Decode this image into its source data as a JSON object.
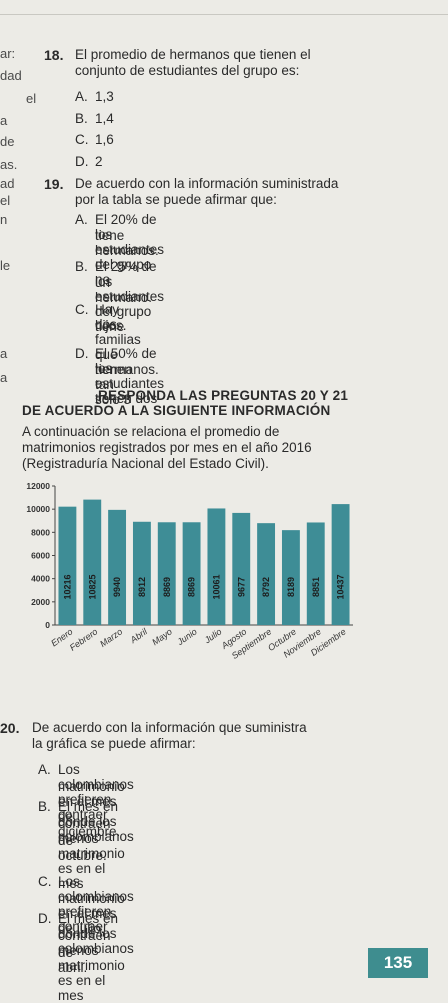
{
  "left_margin_fragments": [
    "ar:",
    "dad",
    "el",
    "a",
    "de",
    "as.",
    "ad",
    "el",
    "n",
    "le",
    "a",
    "a"
  ],
  "q18": {
    "number": "18.",
    "text_lines": [
      "El promedio de hermanos que tienen el",
      "conjunto de estudiantes del grupo es:"
    ],
    "options": [
      {
        "letter": "A.",
        "text": "1,3"
      },
      {
        "letter": "B.",
        "text": "1,4"
      },
      {
        "letter": "C.",
        "text": "1,6"
      },
      {
        "letter": "D.",
        "text": "2"
      }
    ]
  },
  "q19": {
    "number": "19.",
    "text_lines": [
      "De acuerdo con la información suministrada",
      "por la tabla se puede afirmar que:"
    ],
    "options": [
      {
        "letter": "A.",
        "lines": [
          "El 20% de los estudiantes del grupo no",
          "tiene hermanos."
        ]
      },
      {
        "letter": "B.",
        "lines": [
          "El 25% de los estudiantes del grupo tiene",
          "un hermano."
        ]
      },
      {
        "letter": "C.",
        "lines": [
          "Hay dos familias que tienen tan solo 3",
          "hijos."
        ]
      },
      {
        "letter": "D.",
        "lines": [
          "El 50% de los estudiantes tienen dos",
          "hermanos."
        ]
      }
    ]
  },
  "heading_lines": [
    "RESPONDA LAS PREGUNTAS 20 Y 21",
    "DE ACUERDO A LA SIGUIENTE INFORMACIÓN"
  ],
  "intro_lines": [
    "A continuación se relaciona el promedio de",
    "matrimonios registrados por mes en el año 2016",
    "(Registraduría Nacional del Estado Civil)."
  ],
  "chart_data": {
    "type": "bar",
    "categories": [
      "Enero",
      "Febrero",
      "Marzo",
      "Abril",
      "Mayo",
      "Junio",
      "Julio",
      "Agosto",
      "Septiembre",
      "Octubre",
      "Noviembre",
      "Diciembre"
    ],
    "values": [
      10216,
      10825,
      9940,
      8912,
      8869,
      8869,
      10061,
      9677,
      8792,
      8189,
      8851,
      10437
    ],
    "value_labels": [
      "10216",
      "10825",
      "9940",
      "8912",
      "8869",
      "8869",
      "10061",
      "9677",
      "8792",
      "8189",
      "8851",
      "10437"
    ],
    "yticks": [
      "0",
      "2000",
      "4000",
      "6000",
      "8000",
      "10000",
      "12000"
    ],
    "ylim": [
      0,
      12000
    ],
    "bar_color": "#3e8d96"
  },
  "q20": {
    "number": "20.",
    "text_lines": [
      "De acuerdo con la información que suministra",
      "la gráfica se puede afirmar:"
    ],
    "options": [
      {
        "letter": "A.",
        "lines": [
          "Los colombianos prefieren contraer",
          "matrimonio en el mes de diciembre."
        ]
      },
      {
        "letter": "B.",
        "lines": [
          "El mes en donde los colombianos",
          "contraen menos matrimonio es en el mes",
          "de octubre."
        ]
      },
      {
        "letter": "C.",
        "lines": [
          "Los colombianos prefieren contraer",
          "matrimonio en el mes de julio."
        ]
      },
      {
        "letter": "D.",
        "lines": [
          "El mes en donde los colombianos",
          "contraen menos matrimonio es en el mes",
          "de abril."
        ]
      }
    ]
  },
  "page_number": "135"
}
